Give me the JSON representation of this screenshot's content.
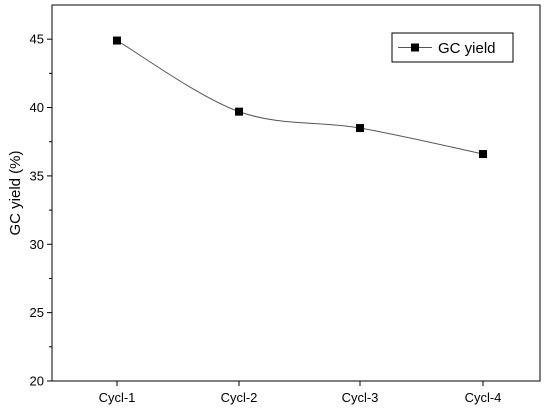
{
  "chart_data": {
    "type": "line",
    "title": "",
    "xlabel": "",
    "ylabel": "GC yield (%)",
    "categories": [
      "Cycl-1",
      "Cycl-2",
      "Cycl-3",
      "Cycl-4"
    ],
    "series": [
      {
        "name": "GC yield",
        "values": [
          44.9,
          39.7,
          38.5,
          36.6
        ]
      }
    ],
    "ylim": [
      20,
      47.5
    ],
    "yticks": [
      20,
      25,
      30,
      35,
      40,
      45
    ],
    "grid": false,
    "legend": "top-right",
    "smooth": true,
    "colors": {
      "line": "#555555",
      "marker": "#000000",
      "axis": "#000000"
    }
  }
}
